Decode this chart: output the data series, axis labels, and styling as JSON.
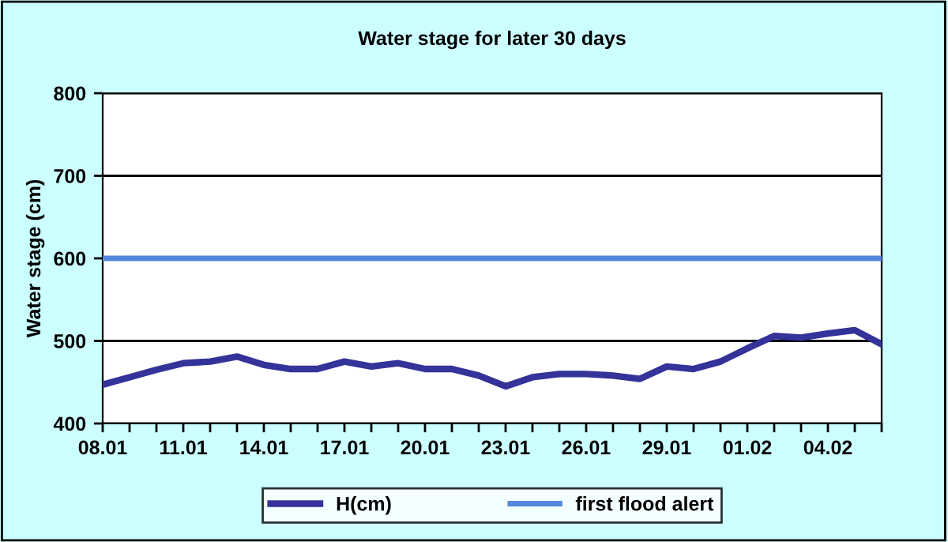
{
  "chart_data": {
    "type": "line",
    "title": "Water stage for later 30 days",
    "ylabel": "Water stage (cm)",
    "categories": [
      "08.01",
      null,
      null,
      "11.01",
      null,
      null,
      "14.01",
      null,
      null,
      "17.01",
      null,
      null,
      "20.01",
      null,
      null,
      "23.01",
      null,
      null,
      "26.01",
      null,
      null,
      "29.01",
      null,
      null,
      "01.02",
      null,
      null,
      "04.02",
      null,
      null
    ],
    "series": [
      {
        "name": "H(cm)",
        "color": "#333399",
        "values": [
          447,
          456,
          465,
          473,
          475,
          481,
          471,
          466,
          466,
          475,
          469,
          473,
          466,
          466,
          458,
          445,
          456,
          460,
          460,
          458,
          454,
          469,
          466,
          475,
          491,
          506,
          504,
          509,
          513,
          496
        ]
      },
      {
        "name": "first flood alert",
        "color": "#5588dd",
        "values": [
          600,
          600,
          600,
          600,
          600,
          600,
          600,
          600,
          600,
          600,
          600,
          600,
          600,
          600,
          600,
          600,
          600,
          600,
          600,
          600,
          600,
          600,
          600,
          600,
          600,
          600,
          600,
          600,
          600,
          600
        ]
      }
    ],
    "ylim": [
      400,
      800
    ],
    "yticks": [
      400,
      500,
      600,
      700,
      800
    ],
    "grid": "y",
    "legend": "bottom",
    "marker": "none",
    "line_style": "solid"
  }
}
